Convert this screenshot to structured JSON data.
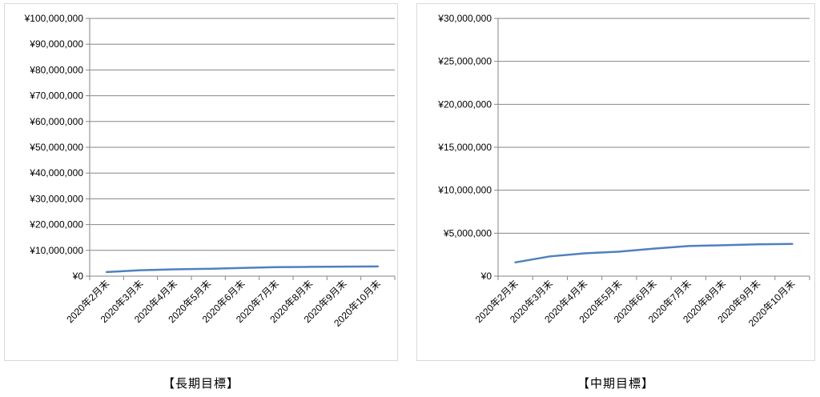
{
  "captions": {
    "left": "【長期目標】",
    "right": "【中期目標】"
  },
  "colors": {
    "line": "#4f81bd",
    "grid": "#868686",
    "axis": "#868686"
  },
  "chart_data": [
    {
      "type": "line",
      "categories": [
        "2020年2月末",
        "2020年3月末",
        "2020年4月末",
        "2020年5月末",
        "2020年6月末",
        "2020年7月末",
        "2020年8月末",
        "2020年9月末",
        "2020年10月末"
      ],
      "series": [
        {
          "values": [
            1600000,
            2300000,
            2650000,
            2850000,
            3200000,
            3500000,
            3600000,
            3700000,
            3750000
          ]
        }
      ],
      "ylim": [
        0,
        100000000
      ],
      "yticks": [
        0,
        10000000,
        20000000,
        30000000,
        40000000,
        50000000,
        60000000,
        70000000,
        80000000,
        90000000,
        100000000
      ],
      "ytick_labels": [
        "¥0",
        "¥10,000,000",
        "¥20,000,000",
        "¥30,000,000",
        "¥40,000,000",
        "¥50,000,000",
        "¥60,000,000",
        "¥70,000,000",
        "¥80,000,000",
        "¥90,000,000",
        "¥100,000,000"
      ],
      "grid": true,
      "legend": "none"
    },
    {
      "type": "line",
      "categories": [
        "2020年2月末",
        "2020年3月末",
        "2020年4月末",
        "2020年5月末",
        "2020年6月末",
        "2020年7月末",
        "2020年8月末",
        "2020年9月末",
        "2020年10月末"
      ],
      "series": [
        {
          "values": [
            1600000,
            2300000,
            2650000,
            2850000,
            3200000,
            3500000,
            3600000,
            3700000,
            3750000
          ]
        }
      ],
      "ylim": [
        0,
        30000000
      ],
      "yticks": [
        0,
        5000000,
        10000000,
        15000000,
        20000000,
        25000000,
        30000000
      ],
      "ytick_labels": [
        "¥0",
        "¥5,000,000",
        "¥10,000,000",
        "¥15,000,000",
        "¥20,000,000",
        "¥25,000,000",
        "¥30,000,000"
      ],
      "grid": true,
      "legend": "none"
    }
  ]
}
